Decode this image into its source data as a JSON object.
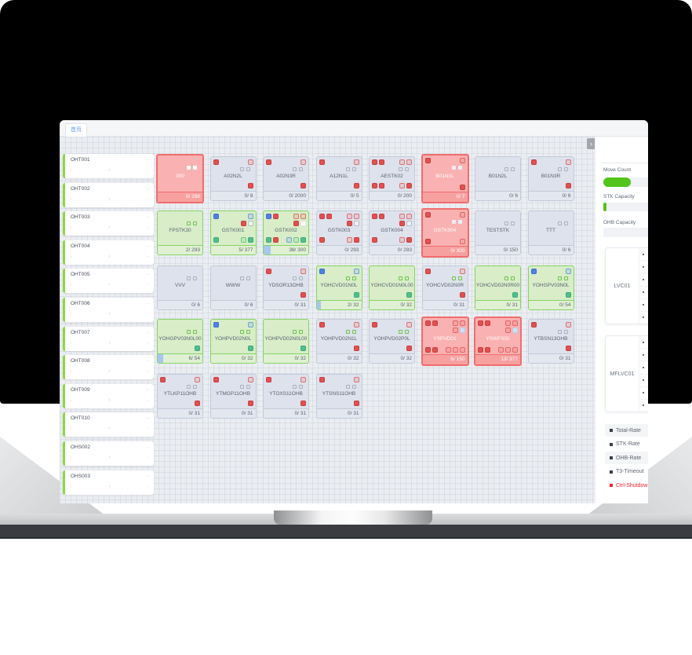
{
  "tab": {
    "home_label": "首页"
  },
  "grid": {
    "collapse_glyph": "›"
  },
  "colors": {
    "alarm_red": "#f16d6d",
    "ok_green": "#84d464",
    "idle_gray": "#c3cad8",
    "progress_green": "#52c41a",
    "link_blue": "#5d9bf7",
    "legend_red": "#f5222d",
    "icon_red": "#e25050",
    "icon_blue": "#4f81e8",
    "icon_teal": "#4fc08d"
  },
  "oht": {
    "placeholder": "-",
    "chevron": "›",
    "items": [
      "OHT001",
      "OHT002",
      "OHT003",
      "OHT004",
      "OHT005",
      "OHT006",
      "OHT007",
      "OHT008",
      "OHT009",
      "OHT010",
      "OHS002",
      "OHS003"
    ]
  },
  "stations": {
    "rows": [
      [
        {
          "n": "300",
          "f": "0/ 298",
          "c": "red",
          "sq": "white"
        },
        {
          "n": "A02N2L",
          "f": "0/ 8",
          "c": "gray",
          "tl": [
            "red"
          ],
          "tr": [
            "redo"
          ],
          "sq": "gray",
          "br": [
            "red"
          ]
        },
        {
          "n": "A02N3R",
          "f": "0/ 2000",
          "c": "gray",
          "tl": [
            "red"
          ],
          "tr": [
            "redo"
          ],
          "sq": "gray",
          "br": [
            "red"
          ]
        },
        {
          "n": "A12N1L",
          "f": "0/ 5",
          "c": "gray",
          "tl": [
            "red"
          ],
          "tr": [
            "redo"
          ],
          "sq": "gray",
          "br": [
            "red"
          ]
        },
        {
          "n": "AESTK02",
          "f": "0/ 200",
          "c": "gray",
          "tl": [
            "red",
            "red"
          ],
          "tr": [
            "redo",
            "redo"
          ],
          "sq": "gray",
          "bl": [
            "red",
            "red"
          ],
          "br": [
            "redo",
            "red"
          ]
        },
        {
          "n": "B01N1L",
          "f": "0/ 7",
          "c": "red",
          "tl": [
            "red"
          ],
          "tr": [
            "redo"
          ],
          "sq": "light",
          "br": [
            "red"
          ]
        },
        {
          "n": "B01N2L",
          "f": "0/ 6",
          "c": "gray",
          "sq": "gray"
        },
        {
          "n": "B01N3R",
          "f": "0/ 6",
          "c": "gray",
          "tl": [
            "red"
          ],
          "tr": [
            "redo"
          ],
          "sq": "gray",
          "br": [
            "red"
          ]
        }
      ],
      [
        {
          "n": "FPSTK30",
          "f": "2/ 293",
          "c": "green",
          "sq": "green"
        },
        {
          "n": "GSTK001",
          "f": "5/ 377",
          "c": "green",
          "tl": [
            "blue"
          ],
          "tr": [
            "blueo"
          ],
          "ml": [
            "red",
            "grayo"
          ],
          "bl": [
            "teal"
          ],
          "br": [
            "greeno",
            "teal"
          ]
        },
        {
          "n": "GSTK002",
          "f": "38/ 300",
          "c": "green",
          "tl": [
            "blue",
            "red"
          ],
          "tr": [
            "redo",
            "redo"
          ],
          "ml": [
            "red",
            "white"
          ],
          "bl": [
            "teal",
            "red"
          ],
          "br": [
            "blueo",
            "greeno",
            "teal"
          ],
          "p": 0.15
        },
        {
          "n": "GSTK003",
          "f": "0/ 293",
          "c": "gray",
          "tl": [
            "red",
            "red"
          ],
          "tr": [
            "redo",
            "redo"
          ],
          "ml": [
            "red",
            "grayo"
          ],
          "bl": [
            "red"
          ],
          "br": [
            "redo",
            "red"
          ]
        },
        {
          "n": "GSTK004",
          "f": "0/ 293",
          "c": "gray",
          "tl": [
            "red",
            "red"
          ],
          "tr": [
            "redo",
            "redo"
          ],
          "ml": [
            "red",
            "grayo"
          ],
          "bl": [
            "red"
          ],
          "br": [
            "redo",
            "red"
          ]
        },
        {
          "n": "GSTK904",
          "f": "0/ 300",
          "c": "red",
          "tl": [
            "red"
          ],
          "tr": [
            "redo"
          ],
          "sq": "light",
          "bl": [
            "red"
          ],
          "br": [
            "redo"
          ]
        },
        {
          "n": "TESTSTK",
          "f": "0/ 150",
          "c": "gray",
          "sq": "gray"
        },
        {
          "n": "TTT",
          "f": "0/ 6",
          "c": "gray",
          "sq": "gray"
        }
      ],
      [
        {
          "n": "VVV",
          "f": "0/ 6",
          "c": "gray",
          "sq": "gray"
        },
        {
          "n": "WWW",
          "f": "0/ 6",
          "c": "gray",
          "sq": "gray"
        },
        {
          "n": "YDSOR13OHB",
          "f": "0/ 31",
          "c": "gray",
          "tl": [
            "red"
          ],
          "tr": [
            "redo"
          ],
          "sq": "gray",
          "br": [
            "red"
          ]
        },
        {
          "n": "YOHCVD01N0L",
          "f": "2/ 32",
          "c": "green",
          "tl": [
            "blue"
          ],
          "tr": [
            "blueo"
          ],
          "sq": "green",
          "br": [
            "teal"
          ],
          "p": 0.1
        },
        {
          "n": "YOHCVD01N0L00",
          "f": "0/ 32",
          "c": "green",
          "sq": "green",
          "br": [
            "teal"
          ]
        },
        {
          "n": "YOHCVD02N0R",
          "f": "0/ 31",
          "c": "gray",
          "tl": [
            "red"
          ],
          "tr": [
            "redo"
          ],
          "sq": "green",
          "br": [
            "red"
          ]
        },
        {
          "n": "YOHCVD02N0R00",
          "f": "0/ 31",
          "c": "green",
          "sq": "green",
          "br": [
            "teal"
          ]
        },
        {
          "n": "YOHGPV03N0L",
          "f": "0/ 54",
          "c": "green",
          "tl": [
            "blue"
          ],
          "tr": [
            "blueo"
          ],
          "sq": "green",
          "br": [
            "teal"
          ]
        }
      ],
      [
        {
          "n": "YOHGPV03N0L00",
          "f": "6/ 54",
          "c": "green",
          "sq": "green",
          "br": [
            "teal"
          ],
          "p": 0.13
        },
        {
          "n": "YOHPVD02N0L",
          "f": "0/ 32",
          "c": "green",
          "tl": [
            "blue"
          ],
          "tr": [
            "blueo"
          ],
          "sq": "green",
          "br": [
            "teal"
          ]
        },
        {
          "n": "YOHPVD02N0L00",
          "f": "0/ 32",
          "c": "green",
          "sq": "green",
          "br": [
            "teal"
          ]
        },
        {
          "n": "YOHPVD02N1L",
          "f": "0/ 32",
          "c": "gray",
          "tl": [
            "red"
          ],
          "tr": [
            "redo"
          ],
          "sq": "green",
          "br": [
            "red"
          ]
        },
        {
          "n": "YOHPVD02P0L",
          "f": "0/ 32",
          "c": "gray",
          "tl": [
            "red"
          ],
          "tr": [
            "redo"
          ],
          "sq": "green",
          "br": [
            "red"
          ]
        },
        {
          "n": "YSPVD01",
          "f": "6/ 150",
          "c": "red",
          "tl": [
            "red",
            "red"
          ],
          "tr": [
            "redo",
            "redo"
          ],
          "ml": [
            "redo",
            "light"
          ],
          "bl": [
            "red",
            "red"
          ],
          "br": [
            "redo",
            "redo",
            "redo"
          ]
        },
        {
          "n": "YSWFS02",
          "f": "13/ 377",
          "c": "red",
          "tl": [
            "red",
            "red"
          ],
          "tr": [
            "redo",
            "redo"
          ],
          "ml": [
            "redo",
            "light"
          ],
          "bl": [
            "red",
            "red"
          ],
          "br": [
            "redo",
            "redo",
            "redo"
          ]
        },
        {
          "n": "YTBSN13OHB",
          "f": "0/ 31",
          "c": "gray",
          "tl": [
            "red"
          ],
          "tr": [
            "redo"
          ],
          "sq": "gray",
          "br": [
            "red"
          ]
        }
      ],
      [
        {
          "n": "YTLKP11OHB",
          "f": "0/ 31",
          "c": "gray",
          "tl": [
            "red"
          ],
          "tr": [
            "redo"
          ],
          "sq": "gray",
          "br": [
            "red"
          ]
        },
        {
          "n": "YTMGP11OHB",
          "f": "0/ 31",
          "c": "gray",
          "tl": [
            "red"
          ],
          "tr": [
            "redo"
          ],
          "sq": "gray",
          "br": [
            "red"
          ]
        },
        {
          "n": "YTOXS11OHB",
          "f": "0/ 31",
          "c": "gray",
          "tl": [
            "red"
          ],
          "tr": [
            "redo"
          ],
          "sq": "gray",
          "br": [
            "red"
          ]
        },
        {
          "n": "YTSNS11OHB",
          "f": "0/ 31",
          "c": "gray",
          "tl": [
            "red"
          ],
          "tr": [
            "redo"
          ],
          "sq": "gray",
          "br": [
            "red"
          ]
        }
      ]
    ]
  },
  "sidebar": {
    "move_count_label": "Move Count",
    "stk_capacity_label": "STK Capacity",
    "ohb_capacity_label": "OHB Capacity",
    "move_count_fill": 0.5,
    "stk_capacity_fill": 0.05,
    "ohb_capacity_fill": 0,
    "panels": [
      {
        "label": "LVC01",
        "rows": 6
      },
      {
        "label": "MFLVC01",
        "rows": 6
      }
    ],
    "legend": [
      {
        "label": "Total-Rate",
        "bullet": "#3a3f46",
        "text": "#5f6670",
        "alt": true
      },
      {
        "label": "STK-Rate",
        "bullet": "#3a3f46",
        "text": "#5f6670",
        "alt": false
      },
      {
        "label": "OHB-Rate",
        "bullet": "#3a3f46",
        "text": "#5f6670",
        "alt": true
      },
      {
        "label": "T3-Timeout",
        "bullet": "#3a3f46",
        "text": "#5f6670",
        "alt": false
      },
      {
        "label": "Ctrl-Shutdown",
        "bullet": "#f5222d",
        "text": "#f5222d",
        "alt": false
      }
    ]
  }
}
